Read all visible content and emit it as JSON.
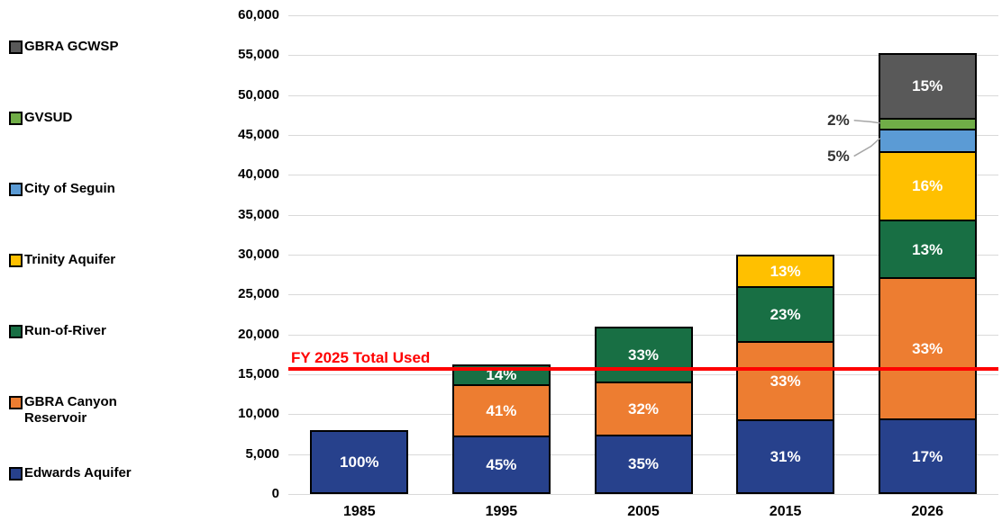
{
  "page": {
    "background": "#ffffff"
  },
  "chart_data": {
    "type": "bar",
    "subtype": "stacked-vertical",
    "title": "",
    "xlabel": "",
    "ylabel": "",
    "categories": [
      "1985",
      "1995",
      "2005",
      "2015",
      "2026"
    ],
    "series": [
      {
        "name": "Edwards Aquifer",
        "color": "#27418c",
        "values": [
          8000,
          7300,
          7350,
          9300,
          9300
        ],
        "labels": [
          "100%",
          "45%",
          "35%",
          "31%",
          "17%"
        ]
      },
      {
        "name": "GBRA Canyon Reservoir",
        "color": "#ed7d31",
        "values": [
          0,
          6600,
          6700,
          9900,
          18100
        ],
        "labels": [
          "",
          "41%",
          "32%",
          "33%",
          "33%"
        ]
      },
      {
        "name": "Run-of-River",
        "color": "#186f44",
        "values": [
          0,
          2300,
          6950,
          6900,
          7200
        ],
        "labels": [
          "",
          "14%",
          "33%",
          "23%",
          "13%"
        ]
      },
      {
        "name": "Trinity Aquifer",
        "color": "#ffc000",
        "values": [
          0,
          0,
          0,
          3900,
          8700
        ],
        "labels": [
          "",
          "",
          "",
          "13%",
          "16%"
        ]
      },
      {
        "name": "City of Seguin",
        "color": "#5b9bd5",
        "values": [
          0,
          0,
          0,
          0,
          2600
        ],
        "labels": [
          "",
          "",
          "",
          "",
          ""
        ]
      },
      {
        "name": "GVSUD",
        "color": "#70ad47",
        "values": [
          0,
          0,
          0,
          0,
          1200
        ],
        "labels": [
          "",
          "",
          "",
          "",
          ""
        ]
      },
      {
        "name": "GBRA GCWSP",
        "color": "#595959",
        "values": [
          0,
          0,
          0,
          0,
          8200
        ],
        "labels": [
          "",
          "",
          "",
          "",
          "15%"
        ]
      }
    ],
    "callouts": [
      {
        "series": "GVSUD",
        "category": "2026",
        "text": "2%"
      },
      {
        "series": "City of Seguin",
        "category": "2026",
        "text": "5%"
      }
    ],
    "reference_line": {
      "label": "FY 2025 Total Used",
      "value": 15700,
      "color": "#ff0000"
    },
    "ylim": [
      0,
      60000
    ],
    "ytick_step": 5000,
    "grid": true,
    "gridline_color": "#d9d9d9",
    "legend_position": "left",
    "legend_order_top_to_bottom": [
      "GBRA GCWSP",
      "GVSUD",
      "City of Seguin",
      "Trinity Aquifer",
      "Run-of-River",
      "GBRA Canyon Reservoir",
      "Edwards Aquifer"
    ]
  }
}
